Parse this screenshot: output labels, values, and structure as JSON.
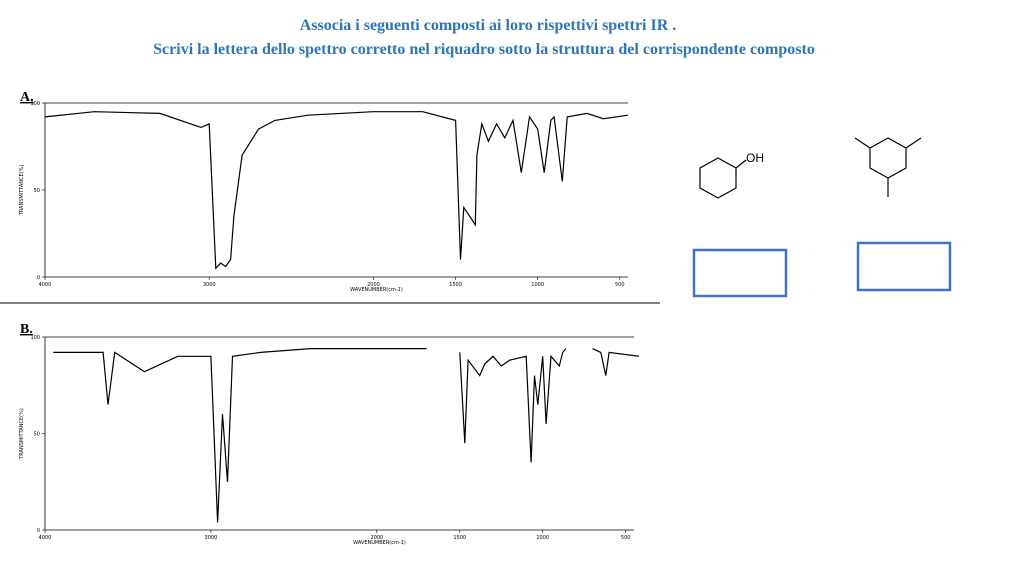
{
  "header": {
    "line1": "Associa i seguenti composti ai loro rispettivi spettri IR .",
    "line2": "Scrivi la lettera dello spettro corretto nel riquadro sotto la struttura del corrispondente composto"
  },
  "structures": [
    {
      "label": "OH"
    }
  ],
  "chart_data": [
    {
      "type": "line",
      "panel": "A.",
      "xlabel": "WAVENUMBER(cm-1)",
      "ylabel": "TRANSMITTANCE(%)",
      "color": "#000000",
      "xlim": [
        4000,
        450
      ],
      "ylim": [
        0,
        100
      ],
      "xticks": [
        4000,
        3000,
        2000,
        1500,
        1000,
        500
      ],
      "yticks": [
        0,
        50,
        100
      ],
      "x": [
        4000,
        3700,
        3300,
        3050,
        3000,
        2960,
        2930,
        2900,
        2870,
        2850,
        2800,
        2700,
        2600,
        2400,
        2000,
        1700,
        1500,
        1470,
        1450,
        1380,
        1370,
        1340,
        1300,
        1250,
        1200,
        1150,
        1100,
        1050,
        1000,
        960,
        920,
        900,
        850,
        820,
        700,
        600,
        450
      ],
      "values": [
        92,
        95,
        94,
        86,
        88,
        5,
        8,
        6,
        10,
        35,
        70,
        85,
        90,
        93,
        95,
        95,
        90,
        10,
        40,
        30,
        70,
        88,
        78,
        88,
        80,
        90,
        60,
        92,
        85,
        60,
        90,
        92,
        55,
        92,
        94,
        91,
        93
      ]
    },
    {
      "type": "line",
      "panel": "B.",
      "xlabel": "WAVENUMBER(cm-1)",
      "ylabel": "TRANSMITTANCE(%)",
      "color": "#000000",
      "xlim": [
        4000,
        450
      ],
      "ylim": [
        0,
        100
      ],
      "xticks": [
        4000,
        3000,
        2000,
        1500,
        1000,
        500
      ],
      "yticks": [
        0,
        50,
        100
      ],
      "x": [
        3950,
        3650,
        3620,
        3580,
        3400,
        3200,
        3000,
        2960,
        2930,
        2900,
        2870,
        2700,
        2400,
        2000,
        1700,
        1600,
        1500,
        1470,
        1450,
        1380,
        1350,
        1300,
        1250,
        1200,
        1100,
        1070,
        1050,
        1030,
        1000,
        980,
        950,
        900,
        880,
        860,
        780,
        700,
        650,
        620,
        600,
        420
      ],
      "values": [
        92,
        92,
        65,
        92,
        82,
        90,
        90,
        4,
        60,
        25,
        90,
        92,
        94,
        94,
        94,
        null,
        92,
        45,
        88,
        80,
        86,
        90,
        85,
        88,
        90,
        35,
        80,
        65,
        90,
        55,
        90,
        85,
        92,
        94,
        null,
        94,
        92,
        80,
        92,
        90
      ]
    }
  ]
}
